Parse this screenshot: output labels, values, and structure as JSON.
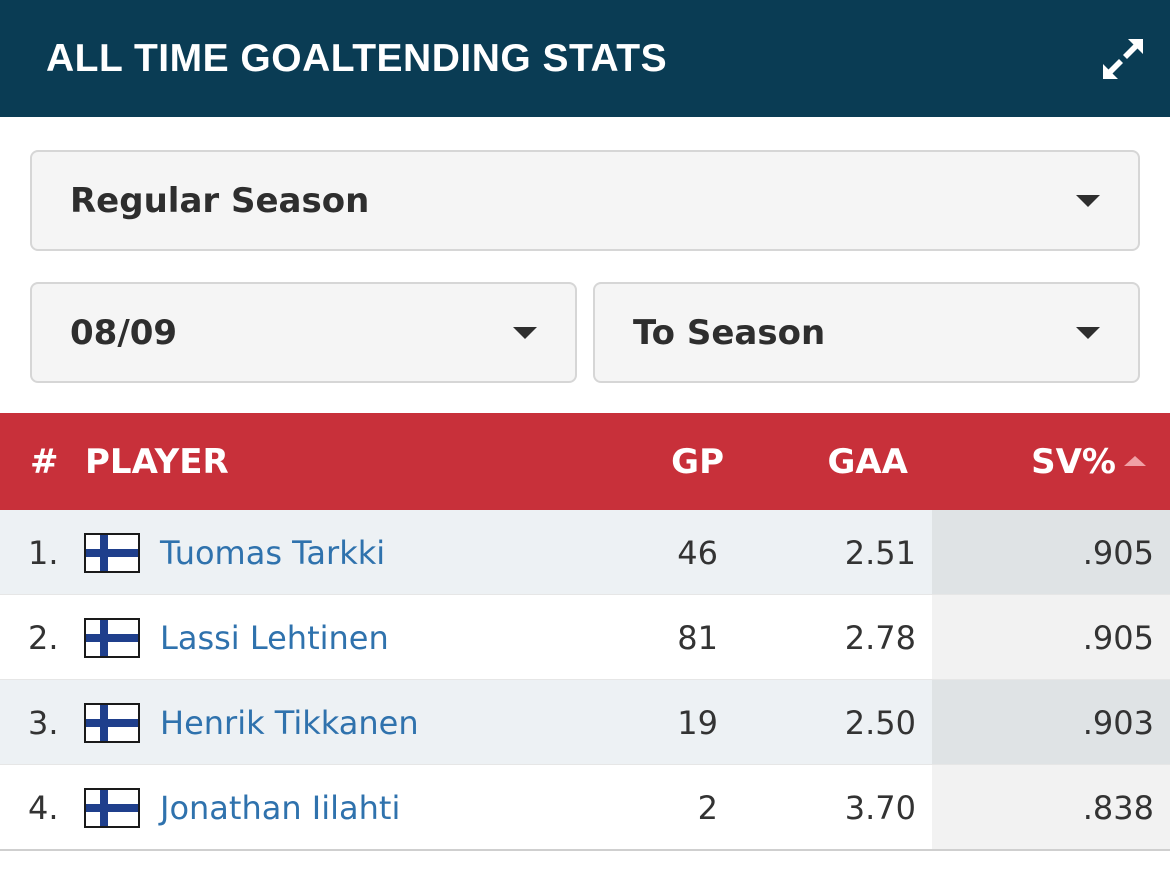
{
  "header": {
    "title": "ALL TIME GOALTENDING STATS",
    "expand_icon": "expand-arrows-icon"
  },
  "filters": {
    "season_type": {
      "selected": "Regular Season"
    },
    "from_season": {
      "selected": "08/09"
    },
    "to_season": {
      "selected": "To Season"
    }
  },
  "colors": {
    "header_bg": "#0a3c54",
    "table_header_bg": "#c8303a",
    "link": "#2f72ad"
  },
  "table": {
    "columns": {
      "num": "#",
      "player": "PLAYER",
      "gp": "GP",
      "gaa": "GAA",
      "sv": "SV%"
    },
    "sorted_by": "SV%",
    "rows": [
      {
        "rank": "1.",
        "flag": "finland-flag-icon",
        "name": "Tuomas Tarkki",
        "gp": "46",
        "gaa": "2.51",
        "sv": ".905"
      },
      {
        "rank": "2.",
        "flag": "finland-flag-icon",
        "name": "Lassi Lehtinen",
        "gp": "81",
        "gaa": "2.78",
        "sv": ".905"
      },
      {
        "rank": "3.",
        "flag": "finland-flag-icon",
        "name": "Henrik Tikkanen",
        "gp": "19",
        "gaa": "2.50",
        "sv": ".903"
      },
      {
        "rank": "4.",
        "flag": "finland-flag-icon",
        "name": "Jonathan Iilahti",
        "gp": "2",
        "gaa": "3.70",
        "sv": ".838"
      }
    ]
  }
}
